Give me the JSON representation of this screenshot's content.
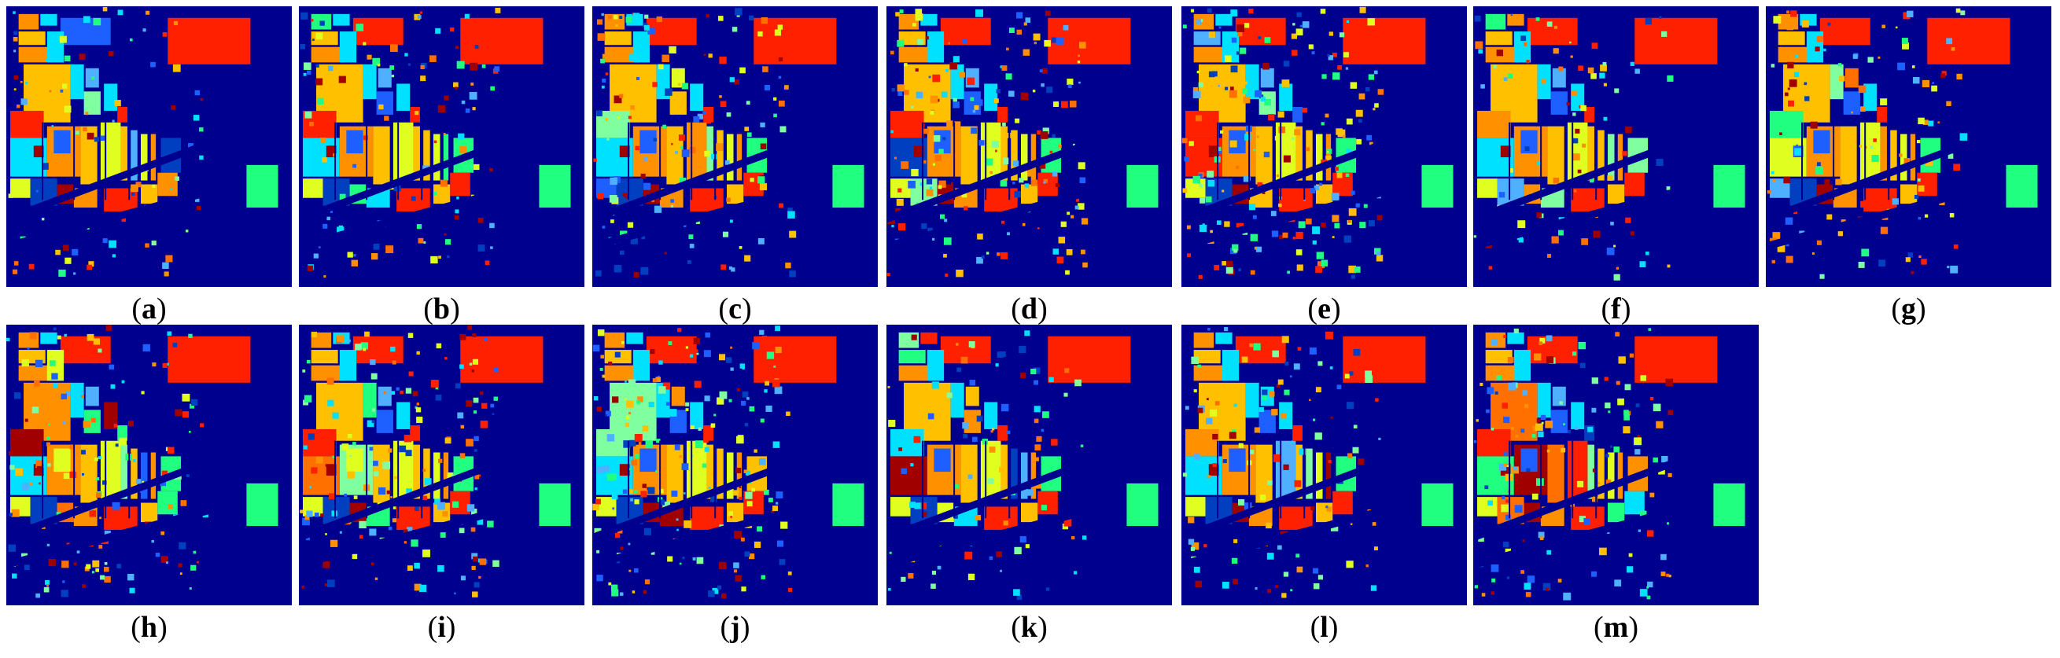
{
  "figure": {
    "panels": [
      {
        "id": "a",
        "letter": "a"
      },
      {
        "id": "b",
        "letter": "b"
      },
      {
        "id": "c",
        "letter": "c"
      },
      {
        "id": "d",
        "letter": "d"
      },
      {
        "id": "e",
        "letter": "e"
      },
      {
        "id": "f",
        "letter": "f"
      },
      {
        "id": "g",
        "letter": "g"
      },
      {
        "id": "h",
        "letter": "h"
      },
      {
        "id": "i",
        "letter": "i"
      },
      {
        "id": "j",
        "letter": "j"
      },
      {
        "id": "k",
        "letter": "k"
      },
      {
        "id": "l",
        "letter": "l"
      },
      {
        "id": "m",
        "letter": "m"
      }
    ],
    "colors": {
      "background": "#00008f",
      "palette": [
        "#ff2000",
        "#ffc000",
        "#ff9000",
        "#00e0ff",
        "#1e60ff",
        "#20ff80",
        "#e0ff20",
        "#a00000",
        "#4fb0ff",
        "#ff7000",
        "#0040c0",
        "#80ffa0"
      ]
    }
  }
}
